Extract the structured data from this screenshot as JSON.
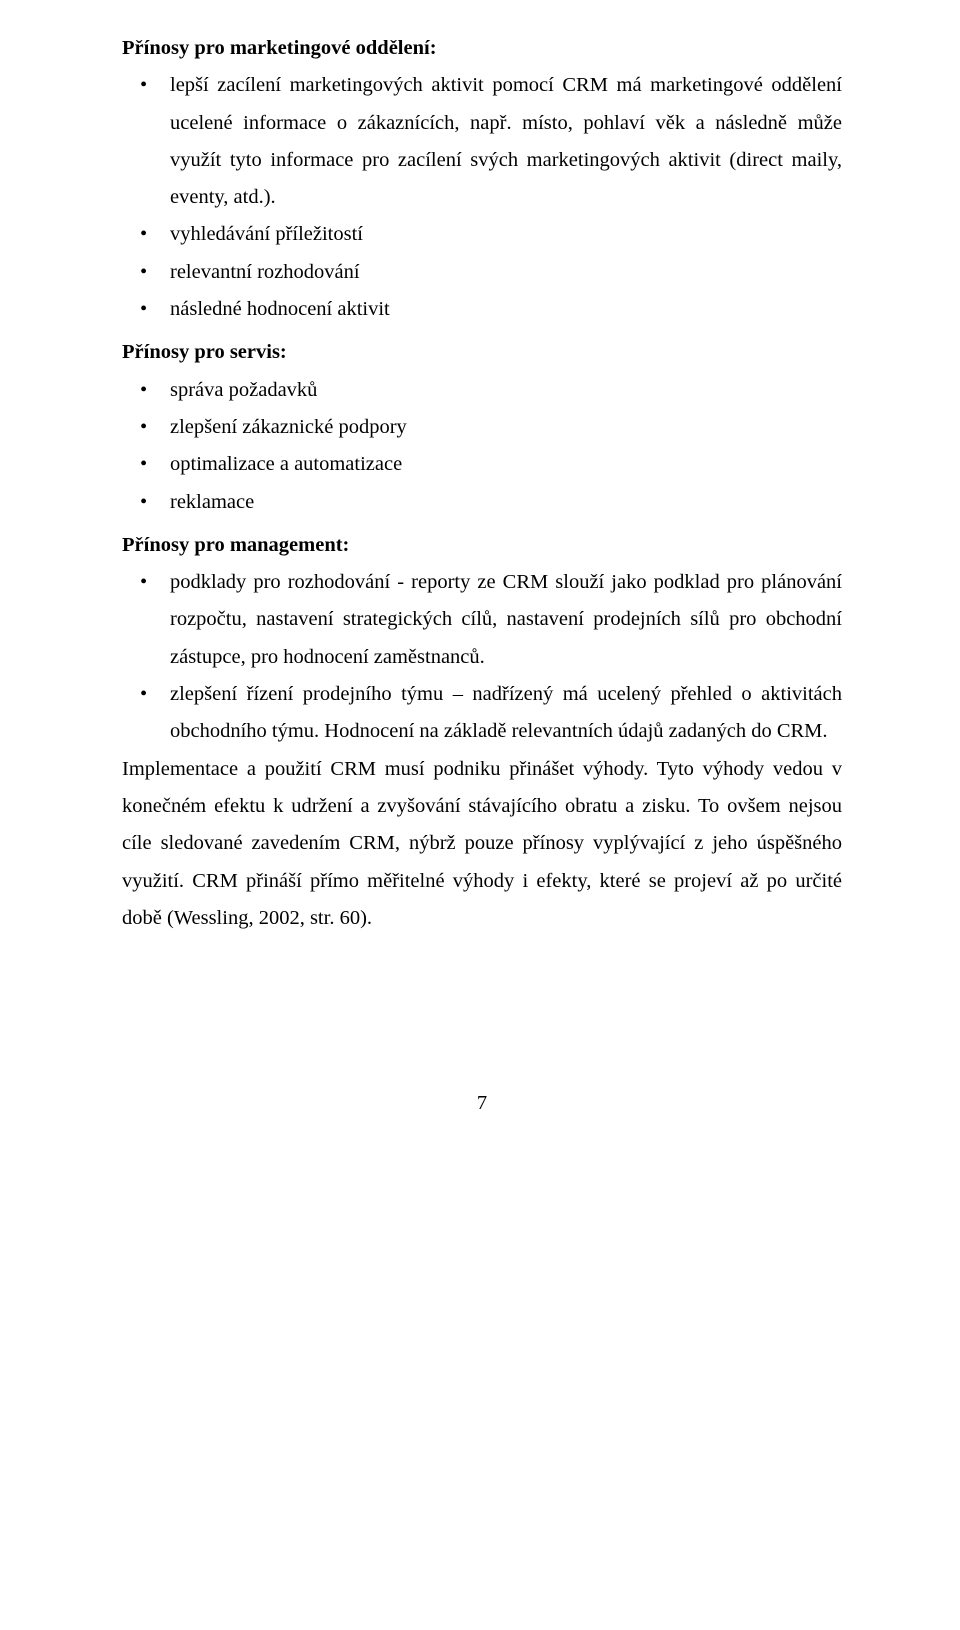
{
  "headings": {
    "marketing": "Přínosy pro marketingové oddělení:",
    "servis": "Přínosy pro servis:",
    "management": "Přínosy pro management:"
  },
  "marketing_items": {
    "i0": "lepší zacílení marketingových aktivit pomocí CRM má marketingové oddělení ucelené informace o zákaznících, např. místo, pohlaví věk a následně může využít tyto informace pro zacílení svých marketingových aktivit (direct maily, eventy, atd.).",
    "i1": "vyhledávání příležitostí",
    "i2": "relevantní rozhodování",
    "i3": "následné hodnocení aktivit"
  },
  "servis_items": {
    "i0": "správa požadavků",
    "i1": "zlepšení zákaznické podpory",
    "i2": "optimalizace a automatizace",
    "i3": "reklamace"
  },
  "management_items": {
    "i0": "podklady pro rozhodování - reporty ze CRM slouží jako podklad pro plánování rozpočtu, nastavení strategických cílů, nastavení prodejních sílů pro obchodní zástupce, pro hodnocení zaměstnanců.",
    "i1": "zlepšení řízení prodejního týmu – nadřízený má ucelený přehled o aktivitách obchodního týmu. Hodnocení na základě relevantních údajů zadaných do CRM."
  },
  "paragraph": "Implementace a použití CRM musí podniku přinášet výhody. Tyto výhody vedou v konečném efektu k udržení a zvyšování stávajícího obratu a zisku. To ovšem nejsou cíle sledované zavedením CRM, nýbrž pouze přínosy vyplývající z jeho úspěšného využití. CRM přináší přímo měřitelné výhody i efekty, které se projeví až po určité době (Wessling, 2002, str. 60).",
  "page_number": "7"
}
